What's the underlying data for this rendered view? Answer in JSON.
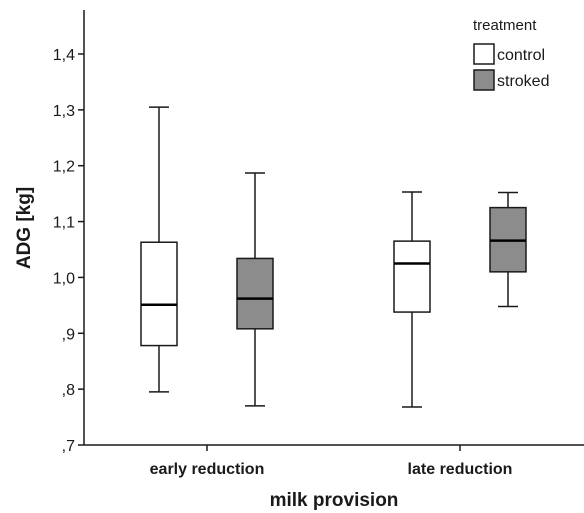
{
  "chart_data": {
    "type": "boxplot",
    "xlabel": "milk provision",
    "ylabel": "ADG [kg]",
    "ylim": [
      0.7,
      1.45
    ],
    "yticks": [
      0.7,
      0.8,
      0.9,
      1.0,
      1.1,
      1.2,
      1.3,
      1.4
    ],
    "ytick_labels": [
      ",7",
      ",8",
      ",9",
      "1,0",
      "1,1",
      "1,2",
      "1,3",
      "1,4"
    ],
    "categories": [
      "early reduction",
      "late reduction"
    ],
    "legend": {
      "title": "treatment",
      "position": "top-right"
    },
    "series": [
      {
        "name": "control",
        "color": "#ffffff",
        "boxes": [
          {
            "whisker_low": 0.795,
            "q1": 0.878,
            "median": 0.951,
            "q3": 1.063,
            "whisker_high": 1.305
          },
          {
            "whisker_low": 0.768,
            "q1": 0.938,
            "median": 1.025,
            "q3": 1.065,
            "whisker_high": 1.153
          }
        ]
      },
      {
        "name": "stroked",
        "color": "#8c8c8c",
        "boxes": [
          {
            "whisker_low": 0.77,
            "q1": 0.908,
            "median": 0.962,
            "q3": 1.034,
            "whisker_high": 1.187
          },
          {
            "whisker_low": 0.948,
            "q1": 1.01,
            "median": 1.066,
            "q3": 1.125,
            "whisker_high": 1.152
          }
        ]
      }
    ],
    "grid": false
  }
}
